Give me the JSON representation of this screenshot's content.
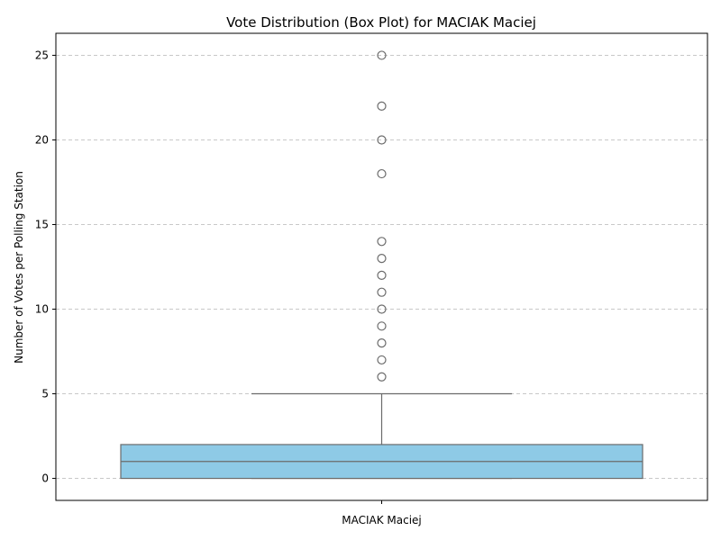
{
  "chart_data": {
    "type": "box",
    "title": "Vote Distribution (Box Plot) for MACIAK Maciej",
    "xlabel": "",
    "ylabel": "Number of Votes per Polling Station",
    "categories": [
      "MACIAK Maciej"
    ],
    "ylim": [
      -1.3,
      26.3
    ],
    "yticks": [
      0,
      5,
      10,
      15,
      20,
      25
    ],
    "grid": "y-dashed",
    "box_color": "#8ecae6",
    "line_color": "#6b6b6b",
    "series": [
      {
        "q1": 0,
        "median": 1,
        "q3": 2,
        "whisker_low": 0,
        "whisker_high": 5,
        "outliers": [
          6,
          7,
          8,
          9,
          10,
          11,
          12,
          13,
          14,
          18,
          20,
          22,
          25
        ]
      }
    ]
  }
}
